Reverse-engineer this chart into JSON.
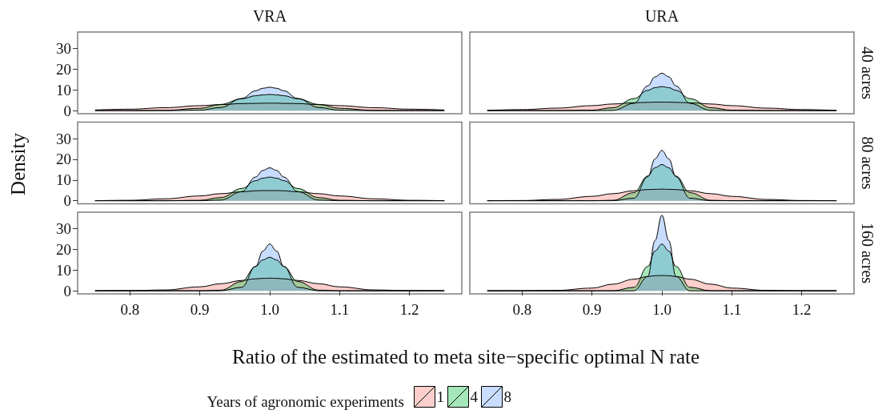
{
  "chart_data": [
    {
      "type": "area",
      "title": "VRA",
      "ylabel": "Density",
      "xlabel": "Ratio of the estimated to meta site−specific optimal N rate",
      "legend": "bottom",
      "legend_title": "Years of agronomic experiments",
      "tick_labels": "y",
      "xlim": [
        0.725,
        1.275
      ],
      "ylim": [
        -1.5,
        38
      ],
      "yticks": [
        0,
        10,
        20,
        30
      ],
      "x": [
        0.75,
        0.8,
        0.85,
        0.9,
        0.93,
        0.96,
        0.98,
        0.99,
        1.0,
        1.01,
        1.02,
        1.04,
        1.07,
        1.1,
        1.15,
        1.2,
        1.25
      ],
      "series": [
        {
          "name": "1",
          "color": "#f8766d",
          "values": [
            0.3,
            0.7,
            1.4,
            2.4,
            2.9,
            3.4,
            3.5,
            3.6,
            3.6,
            3.6,
            3.5,
            3.4,
            2.9,
            2.4,
            1.4,
            0.7,
            0.3
          ]
        },
        {
          "name": "4",
          "color": "#00ba38",
          "values": [
            0,
            0,
            0.1,
            1.1,
            3.0,
            5.7,
            7.2,
            7.6,
            7.8,
            7.6,
            7.2,
            5.7,
            3.0,
            1.1,
            0.1,
            0,
            0
          ]
        },
        {
          "name": "8",
          "color": "#619cff",
          "values": [
            0,
            0,
            0,
            0.2,
            1.5,
            5.9,
            9.6,
            10.8,
            11.3,
            10.8,
            9.6,
            5.9,
            1.5,
            0.2,
            0,
            0,
            0
          ]
        }
      ]
    },
    {
      "type": "area",
      "title": "URA",
      "annotations": [
        "40 acres"
      ],
      "tick_labels": false,
      "xlim": [
        0.725,
        1.275
      ],
      "ylim": [
        -1.5,
        38
      ],
      "x": [
        0.75,
        0.8,
        0.85,
        0.9,
        0.93,
        0.96,
        0.98,
        0.99,
        1.0,
        1.01,
        1.02,
        1.04,
        1.07,
        1.1,
        1.15,
        1.2,
        1.25
      ],
      "series": [
        {
          "name": "1",
          "color": "#f8766d",
          "values": [
            0.1,
            0.5,
            1.2,
            2.4,
            3.2,
            3.8,
            4.0,
            4.1,
            4.1,
            4.1,
            4.0,
            3.8,
            3.2,
            2.4,
            1.2,
            0.5,
            0.1
          ]
        },
        {
          "name": "4",
          "color": "#00ba38",
          "values": [
            0,
            0,
            0,
            0.2,
            1.4,
            5.8,
            9.8,
            11.1,
            11.6,
            11.1,
            9.8,
            5.8,
            1.4,
            0.2,
            0,
            0,
            0
          ]
        },
        {
          "name": "8",
          "color": "#619cff",
          "values": [
            0,
            0,
            0,
            0,
            0.1,
            3.5,
            12.0,
            16.3,
            18.1,
            16.3,
            12.0,
            3.5,
            0.1,
            0,
            0,
            0,
            0
          ]
        }
      ]
    },
    {
      "type": "area",
      "tick_labels": "y",
      "xlim": [
        0.725,
        1.275
      ],
      "ylim": [
        -1.5,
        38
      ],
      "yticks": [
        0,
        10,
        20,
        30
      ],
      "x": [
        0.75,
        0.8,
        0.85,
        0.9,
        0.93,
        0.96,
        0.98,
        0.99,
        1.0,
        1.01,
        1.02,
        1.04,
        1.07,
        1.1,
        1.15,
        1.2,
        1.25
      ],
      "series": [
        {
          "name": "1",
          "color": "#f8766d",
          "values": [
            0,
            0.2,
            0.9,
            2.3,
            3.4,
            4.3,
            4.8,
            4.9,
            4.9,
            4.9,
            4.8,
            4.3,
            3.4,
            2.3,
            0.9,
            0.2,
            0
          ]
        },
        {
          "name": "4",
          "color": "#00ba38",
          "values": [
            0,
            0,
            0,
            0.2,
            1.5,
            5.9,
            9.7,
            10.9,
            11.4,
            10.9,
            9.7,
            5.9,
            1.5,
            0.2,
            0,
            0,
            0
          ]
        },
        {
          "name": "8",
          "color": "#619cff",
          "values": [
            0,
            0,
            0,
            0,
            0.3,
            4.4,
            11.5,
            14.6,
            15.9,
            14.6,
            11.5,
            4.4,
            0.3,
            0,
            0,
            0,
            0
          ]
        }
      ]
    },
    {
      "type": "area",
      "annotations": [
        "80 acres"
      ],
      "tick_labels": false,
      "xlim": [
        0.725,
        1.275
      ],
      "ylim": [
        -1.5,
        38
      ],
      "x": [
        0.75,
        0.8,
        0.85,
        0.9,
        0.93,
        0.96,
        0.98,
        0.99,
        1.0,
        1.01,
        1.02,
        1.04,
        1.07,
        1.1,
        1.15,
        1.2,
        1.25
      ],
      "series": [
        {
          "name": "1",
          "color": "#f8766d",
          "values": [
            0,
            0.1,
            0.6,
            2.1,
            3.4,
            4.8,
            5.4,
            5.5,
            5.6,
            5.5,
            5.4,
            4.8,
            3.4,
            2.1,
            0.6,
            0.1,
            0
          ]
        },
        {
          "name": "4",
          "color": "#00ba38",
          "values": [
            0,
            0,
            0,
            0,
            0.2,
            3.9,
            12.0,
            15.9,
            17.5,
            15.9,
            12.0,
            3.9,
            0.2,
            0,
            0,
            0,
            0
          ]
        },
        {
          "name": "8",
          "color": "#619cff",
          "values": [
            0,
            0,
            0,
            0,
            0,
            1.2,
            11.6,
            20.2,
            24.3,
            20.2,
            11.6,
            1.2,
            0,
            0,
            0,
            0,
            0
          ]
        }
      ]
    },
    {
      "type": "area",
      "xlim": [
        0.725,
        1.275
      ],
      "xticks": [
        0.8,
        0.9,
        {
          "value": 1,
          "label": "1.0"
        },
        1.1,
        1.2
      ],
      "ylim": [
        -1.5,
        38
      ],
      "yticks": [
        0,
        10,
        20,
        30
      ],
      "x": [
        0.75,
        0.8,
        0.85,
        0.9,
        0.93,
        0.96,
        0.98,
        0.99,
        1.0,
        1.01,
        1.02,
        1.04,
        1.07,
        1.1,
        1.15,
        1.2,
        1.25
      ],
      "series": [
        {
          "name": "1",
          "color": "#f8766d",
          "values": [
            0,
            0.1,
            0.4,
            1.9,
            3.4,
            5.0,
            5.8,
            6.0,
            6.1,
            6.0,
            5.8,
            5.0,
            3.4,
            1.9,
            0.4,
            0.1,
            0
          ]
        },
        {
          "name": "4",
          "color": "#00ba38",
          "values": [
            0,
            0,
            0,
            0,
            0.3,
            4.5,
            11.8,
            14.9,
            16.2,
            14.9,
            11.8,
            4.5,
            0.3,
            0,
            0,
            0,
            0
          ]
        },
        {
          "name": "8",
          "color": "#619cff",
          "values": [
            0,
            0,
            0,
            0,
            0,
            1.7,
            11.8,
            19.2,
            22.6,
            19.2,
            11.8,
            1.7,
            0,
            0,
            0,
            0,
            0
          ]
        }
      ]
    },
    {
      "type": "area",
      "annotations": [
        "160 acres"
      ],
      "tick_labels": "x",
      "xlim": [
        0.725,
        1.275
      ],
      "xticks": [
        0.8,
        0.9,
        {
          "value": 1,
          "label": "1.0"
        },
        1.1,
        1.2
      ],
      "ylim": [
        -1.5,
        38
      ],
      "x": [
        0.75,
        0.8,
        0.85,
        0.9,
        0.93,
        0.96,
        0.98,
        0.99,
        1.0,
        1.01,
        1.02,
        1.04,
        1.07,
        1.1,
        1.15,
        1.2,
        1.25
      ],
      "series": [
        {
          "name": "1",
          "color": "#f8766d",
          "values": [
            0,
            0,
            0.2,
            1.3,
            3.2,
            5.6,
            6.9,
            7.3,
            7.4,
            7.3,
            6.9,
            5.6,
            3.2,
            1.3,
            0.2,
            0,
            0
          ]
        },
        {
          "name": "4",
          "color": "#00ba38",
          "values": [
            0,
            0,
            0,
            0,
            0,
            1.7,
            11.8,
            19.2,
            22.6,
            19.2,
            11.8,
            1.7,
            0,
            0,
            0,
            0,
            0
          ]
        },
        {
          "name": "8",
          "color": "#619cff",
          "values": [
            0,
            0,
            0,
            0,
            0,
            0,
            7.0,
            24.2,
            36.5,
            24.2,
            7.0,
            0,
            0,
            0,
            0,
            0,
            0
          ]
        }
      ]
    }
  ]
}
